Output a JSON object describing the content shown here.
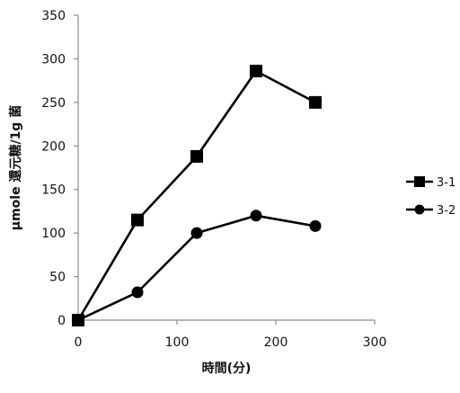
{
  "chart_data": {
    "type": "line",
    "title": "",
    "xlabel": "時間(分)",
    "ylabel": "μmole 還元糖/1g 菌",
    "xlim": [
      0,
      300
    ],
    "ylim": [
      0,
      350
    ],
    "x_ticks": [
      0,
      100,
      200,
      300
    ],
    "y_ticks": [
      0,
      50,
      100,
      150,
      200,
      250,
      300,
      350
    ],
    "grid": false,
    "legend_position": "right",
    "series": [
      {
        "name": "3-1",
        "marker": "square",
        "color": "#000000",
        "x": [
          0,
          60,
          120,
          180,
          240
        ],
        "y": [
          0,
          115,
          188,
          286,
          250
        ]
      },
      {
        "name": "3-2",
        "marker": "circle",
        "color": "#000000",
        "x": [
          0,
          60,
          120,
          180,
          240
        ],
        "y": [
          0,
          32,
          100,
          120,
          108
        ]
      }
    ]
  }
}
